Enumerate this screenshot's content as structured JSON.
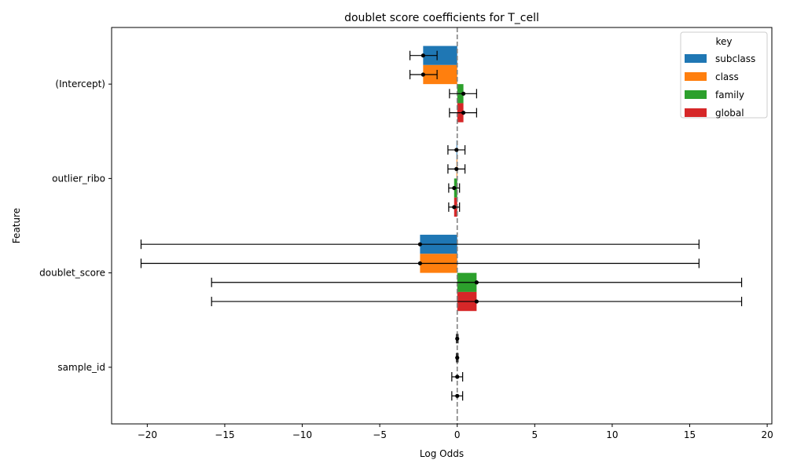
{
  "chart_data": {
    "type": "bar",
    "orientation": "horizontal",
    "title": "doublet score coefficients for T_cell",
    "xlabel": "Log Odds",
    "ylabel": "Feature",
    "xlim": [
      -22.3,
      20.3
    ],
    "xticks": [
      -20,
      -15,
      -10,
      -5,
      0,
      5,
      10,
      15,
      20
    ],
    "xtick_labels": [
      "−20",
      "−15",
      "−10",
      "−5",
      "0",
      "5",
      "10",
      "15",
      "20"
    ],
    "categories": [
      "(Intercept)",
      "outlier_ribo",
      "doublet_score",
      "sample_id"
    ],
    "reference_line": 0,
    "legend": {
      "title": "key",
      "position": "top-right"
    },
    "series": [
      {
        "name": "subclass",
        "color": "#1f77b4",
        "values": [
          -2.2,
          -0.05,
          -2.4,
          0.0
        ],
        "ci_low": [
          -3.05,
          -0.6,
          -20.4,
          -0.05
        ],
        "ci_high": [
          -1.3,
          0.5,
          15.6,
          0.05
        ]
      },
      {
        "name": "class",
        "color": "#ff7f0e",
        "values": [
          -2.2,
          -0.05,
          -2.4,
          0.0
        ],
        "ci_low": [
          -3.05,
          -0.6,
          -20.4,
          -0.05
        ],
        "ci_high": [
          -1.3,
          0.5,
          15.6,
          0.05
        ]
      },
      {
        "name": "family",
        "color": "#2ca02c",
        "values": [
          0.4,
          -0.2,
          1.25,
          0.0
        ],
        "ci_low": [
          -0.5,
          -0.55,
          -15.85,
          -0.35
        ],
        "ci_high": [
          1.25,
          0.15,
          18.35,
          0.35
        ]
      },
      {
        "name": "global",
        "color": "#d62728",
        "values": [
          0.4,
          -0.2,
          1.25,
          0.0
        ],
        "ci_low": [
          -0.5,
          -0.55,
          -15.85,
          -0.35
        ],
        "ci_high": [
          1.25,
          0.15,
          18.35,
          0.35
        ]
      }
    ]
  }
}
